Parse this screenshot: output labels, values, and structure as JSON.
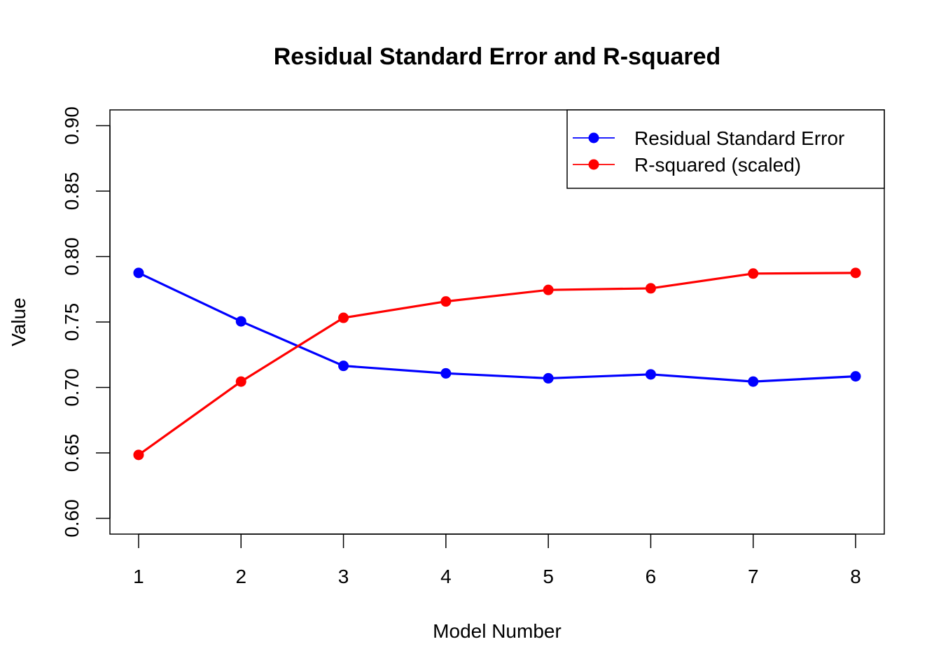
{
  "chart_data": {
    "type": "line",
    "title": "Residual Standard Error and R-squared",
    "xlabel": "Model Number",
    "ylabel": "Value",
    "x": [
      1,
      2,
      3,
      4,
      5,
      6,
      7,
      8
    ],
    "xticks": [
      "1",
      "2",
      "3",
      "4",
      "5",
      "6",
      "7",
      "8"
    ],
    "yticks": [
      "0.60",
      "0.65",
      "0.70",
      "0.75",
      "0.80",
      "0.85",
      "0.90"
    ],
    "xlim": [
      0.72,
      8.28
    ],
    "ylim": [
      0.588,
      0.912
    ],
    "grid": false,
    "legend_position": "top-right",
    "series": [
      {
        "name": "Residual Standard Error",
        "color": "#0000FF",
        "values": [
          0.7875,
          0.7505,
          0.7165,
          0.7108,
          0.707,
          0.71,
          0.7045,
          0.7085
        ]
      },
      {
        "name": "R-squared (scaled)",
        "color": "#FF0000",
        "values": [
          0.6485,
          0.7045,
          0.7532,
          0.7657,
          0.7745,
          0.7757,
          0.787,
          0.7875
        ]
      }
    ]
  }
}
